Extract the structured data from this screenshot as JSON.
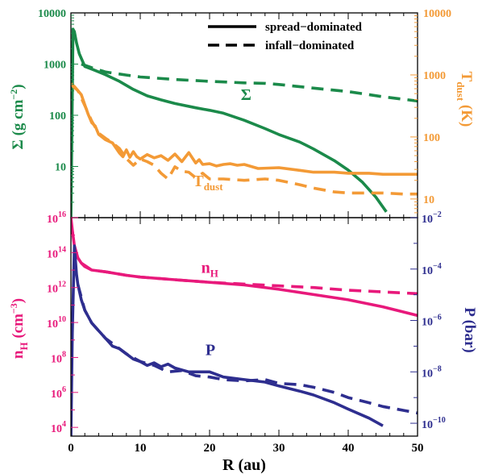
{
  "chart_data": [
    {
      "panel": "top",
      "type": "line",
      "xlim": [
        0,
        50
      ],
      "xscale": "linear",
      "ylim_left": [
        1,
        10000
      ],
      "ylim_right": [
        5,
        10000
      ],
      "yscale": "log",
      "ylabel_left": {
        "main": "Σ (g cm",
        "sup": "−2",
        "end": ")",
        "color": "#1b8a4a"
      },
      "ylabel_right": {
        "main": "T",
        "sub": "dust",
        "end": " (K)",
        "color": "#f39a36"
      },
      "yticks_left": [
        {
          "v": 10,
          "label": "10"
        },
        {
          "v": 100,
          "label": "100"
        },
        {
          "v": 1000,
          "label": "1000"
        },
        {
          "v": 10000,
          "label": "10000"
        }
      ],
      "yticks_right": [
        {
          "v": 10,
          "label": "10"
        },
        {
          "v": 100,
          "label": "100"
        },
        {
          "v": 1000,
          "label": "1000"
        },
        {
          "v": 10000,
          "label": "10000"
        }
      ],
      "legend": {
        "placement": "top-right",
        "entries": [
          {
            "label": "spread−dominated",
            "style": "solid"
          },
          {
            "label": "infall−dominated",
            "style": "dashed"
          }
        ]
      },
      "annotations": [
        {
          "text": "Σ",
          "sub": "",
          "color": "#1b8a4a",
          "x": 24.5,
          "y": 200,
          "axis": "left"
        },
        {
          "text": "T",
          "sub": "dust",
          "color": "#f39a36",
          "x": 17.6,
          "y": 16,
          "axis": "right"
        }
      ],
      "series": [
        {
          "axis": "left",
          "color": "#1b8a4a",
          "style": "solid",
          "x": [
            0,
            0.3,
            0.5,
            0.8,
            1.2,
            2,
            3,
            5,
            7,
            9,
            11,
            13,
            15,
            18,
            20,
            22,
            25,
            28,
            30,
            33,
            35,
            38,
            40,
            42,
            44,
            45.5
          ],
          "y": [
            1,
            4800,
            4300,
            2600,
            1600,
            900,
            800,
            620,
            460,
            320,
            240,
            200,
            170,
            140,
            125,
            110,
            80,
            55,
            42,
            30,
            22,
            13,
            8.5,
            5,
            2.5,
            1.3
          ]
        },
        {
          "axis": "left",
          "color": "#1b8a4a",
          "style": "dashed",
          "x": [
            1.5,
            3,
            5,
            8,
            10,
            15,
            20,
            25,
            28,
            30,
            35,
            40,
            45,
            50
          ],
          "y": [
            1000,
            850,
            700,
            610,
            560,
            500,
            460,
            430,
            420,
            400,
            340,
            290,
            230,
            190
          ]
        },
        {
          "axis": "right",
          "color": "#f39a36",
          "style": "solid",
          "x": [
            0,
            0.4,
            1,
            1.5,
            2,
            2.5,
            3,
            3.5,
            4,
            5,
            6,
            7,
            7.5,
            8,
            8.5,
            9,
            9.5,
            10,
            11,
            12,
            13,
            14,
            15,
            16,
            17,
            18,
            18.5,
            19,
            20,
            21,
            22,
            23,
            24,
            25,
            27,
            30,
            33,
            35,
            38,
            40,
            43,
            45,
            48,
            50
          ],
          "y": [
            720,
            640,
            560,
            480,
            330,
            230,
            170,
            150,
            110,
            90,
            80,
            55,
            48,
            62,
            47,
            58,
            48,
            44,
            52,
            46,
            50,
            42,
            53,
            40,
            56,
            38,
            43,
            36,
            37,
            34,
            36,
            37,
            35,
            36,
            31,
            32,
            29,
            27,
            27,
            26,
            26,
            25,
            25,
            25
          ]
        },
        {
          "axis": "right",
          "color": "#f39a36",
          "style": "dashed",
          "x": [
            0,
            0.5,
            1,
            2,
            3,
            4,
            5,
            6,
            7,
            8,
            9,
            10,
            11,
            12,
            13,
            14,
            15,
            16,
            17,
            18,
            19,
            20,
            22,
            25,
            28,
            30,
            33,
            35,
            38,
            40,
            43,
            45,
            48,
            50
          ],
          "y": [
            720,
            650,
            560,
            320,
            180,
            115,
            95,
            80,
            65,
            45,
            35,
            44,
            40,
            35,
            26,
            21,
            33,
            28,
            27,
            22,
            26,
            21,
            21,
            20,
            21,
            20,
            17,
            15,
            13,
            12.5,
            12.5,
            12.5,
            12,
            12
          ]
        }
      ]
    },
    {
      "panel": "bottom",
      "type": "line",
      "xlim": [
        0,
        50
      ],
      "xscale": "linear",
      "xlabel": "R (au)",
      "xticks": [
        {
          "v": 0,
          "label": "0"
        },
        {
          "v": 10,
          "label": "10"
        },
        {
          "v": 20,
          "label": "20"
        },
        {
          "v": 30,
          "label": "30"
        },
        {
          "v": 40,
          "label": "40"
        },
        {
          "v": 50,
          "label": "50"
        }
      ],
      "ylim_left_exp": [
        3.5,
        16
      ],
      "ylim_right_exp": [
        -10.5,
        -2
      ],
      "yscale": "log",
      "ylabel_left": {
        "main": "n",
        "sub": "H",
        "end": " (cm",
        "sup": "−3",
        "close": ")",
        "color": "#e8197b"
      },
      "ylabel_right": {
        "main": "P (bar)",
        "color": "#2e2e8f"
      },
      "yticks_left": [
        {
          "exp": 4,
          "base": "10",
          "sup": "4"
        },
        {
          "exp": 6,
          "base": "10",
          "sup": "6"
        },
        {
          "exp": 8,
          "base": "10",
          "sup": "8"
        },
        {
          "exp": 10,
          "base": "10",
          "sup": "10"
        },
        {
          "exp": 12,
          "base": "10",
          "sup": "12"
        },
        {
          "exp": 14,
          "base": "10",
          "sup": "14"
        },
        {
          "exp": 16,
          "base": "10",
          "sup": "16"
        }
      ],
      "yticks_right": [
        {
          "exp": -2,
          "base": "10",
          "sup": "−2"
        },
        {
          "exp": -4,
          "base": "10",
          "sup": "−4"
        },
        {
          "exp": -6,
          "base": "10",
          "sup": "−6"
        },
        {
          "exp": -8,
          "base": "10",
          "sup": "−8"
        },
        {
          "exp": -10,
          "base": "10",
          "sup": "−10"
        }
      ],
      "annotations": [
        {
          "text": "n",
          "sub": "H",
          "color": "#e8197b",
          "x": 18.8,
          "exp": 12.85,
          "axis": "left"
        },
        {
          "text": "P",
          "sub": "",
          "color": "#2e2e8f",
          "x": 19.4,
          "exp": -7.35,
          "axis": "right"
        }
      ],
      "series": [
        {
          "axis": "left",
          "color": "#e8197b",
          "style": "solid",
          "x": [
            0,
            0.2,
            0.5,
            1,
            1.5,
            2,
            3,
            5,
            8,
            10,
            15,
            20,
            25,
            30,
            35,
            40,
            45,
            50
          ],
          "exp": [
            16,
            15.3,
            14.4,
            13.7,
            13.4,
            13.2,
            13.0,
            12.9,
            12.7,
            12.6,
            12.45,
            12.3,
            12.15,
            11.9,
            11.6,
            11.3,
            10.9,
            10.4
          ]
        },
        {
          "axis": "left",
          "color": "#e8197b",
          "style": "dashed",
          "x": [
            1.5,
            3,
            5,
            8,
            10,
            15,
            20,
            25,
            30,
            35,
            40,
            45,
            50
          ],
          "exp": [
            13.4,
            13.0,
            12.9,
            12.7,
            12.6,
            12.45,
            12.3,
            12.2,
            12.1,
            12.0,
            11.85,
            11.75,
            11.65
          ]
        },
        {
          "axis": "right",
          "color": "#2e2e8f",
          "style": "solid",
          "x": [
            0,
            0.2,
            0.5,
            0.8,
            1,
            1.5,
            2,
            3,
            4,
            5,
            6,
            7,
            8,
            9,
            10,
            11,
            12,
            13,
            14,
            15,
            17,
            20,
            22,
            25,
            28,
            30,
            33,
            35,
            38,
            40,
            43,
            45
          ],
          "exp": [
            -10.5,
            -6.5,
            -3.1,
            -4.2,
            -4.6,
            -5.2,
            -5.6,
            -6.1,
            -6.4,
            -6.7,
            -7.0,
            -7.1,
            -7.3,
            -7.5,
            -7.6,
            -7.75,
            -7.65,
            -7.8,
            -7.7,
            -7.85,
            -8.0,
            -8.0,
            -8.2,
            -8.3,
            -8.4,
            -8.55,
            -8.75,
            -8.9,
            -9.2,
            -9.45,
            -9.8,
            -10.1
          ]
        },
        {
          "axis": "right",
          "color": "#2e2e8f",
          "style": "dashed",
          "x": [
            1,
            2,
            3,
            5,
            8,
            10,
            12,
            14,
            16,
            18,
            20,
            22,
            25,
            28,
            30,
            33,
            35,
            38,
            40,
            43,
            45,
            48,
            50
          ],
          "exp": [
            -4.6,
            -5.6,
            -6.1,
            -6.7,
            -7.3,
            -7.6,
            -7.75,
            -8.0,
            -7.95,
            -8.15,
            -8.2,
            -8.3,
            -8.35,
            -8.3,
            -8.45,
            -8.5,
            -8.6,
            -8.8,
            -9.0,
            -9.2,
            -9.35,
            -9.5,
            -9.6
          ]
        }
      ]
    }
  ]
}
